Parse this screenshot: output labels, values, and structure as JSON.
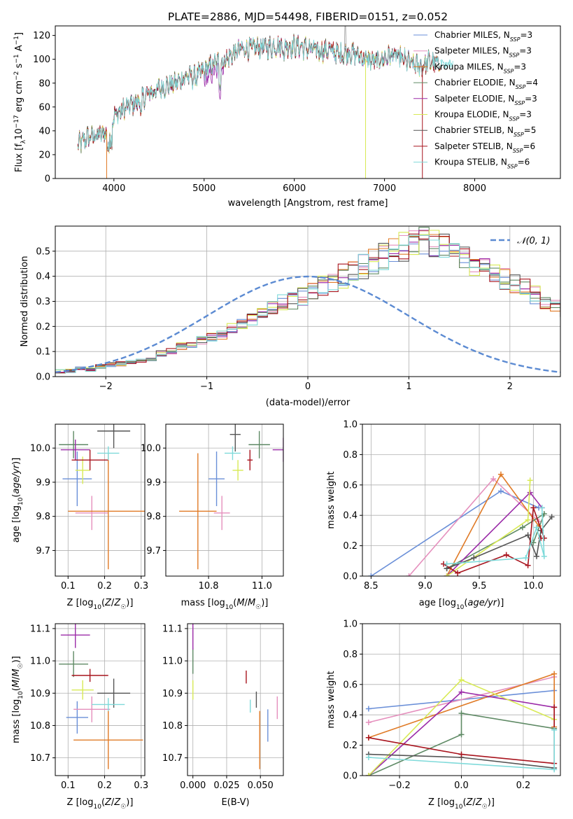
{
  "colors": {
    "Chabrier MILES": "#6a8fd8",
    "Salpeter MILES": "#e58fbd",
    "Kroupa MILES": "#e07b27",
    "Chabrier ELODIE": "#5f8a65",
    "Salpeter ELODIE": "#9b2ba8",
    "Kroupa ELODIE": "#d8ea55",
    "Chabrier STELIB": "#555555",
    "Salpeter STELIB": "#a8141e",
    "Kroupa STELIB": "#7fdada",
    "normal": "#5b8ad2"
  },
  "chart_data": [
    {
      "type": "line",
      "title": "PLATE=2886, MJD=54498, FIBERID=0151, z=0.052",
      "xlabel": "wavelength [Angstrom, rest frame]",
      "ylabel": "Flux [f_λ10^-17 erg cm^-2 s^-1 A^-1]",
      "xlim": [
        3350,
        8950
      ],
      "ylim": [
        0,
        128
      ],
      "xticks": [
        4000,
        5000,
        6000,
        7000,
        8000
      ],
      "yticks": [
        0,
        20,
        40,
        60,
        80,
        100,
        120
      ],
      "legend": "top-right",
      "legend_entries": [
        {
          "label": "Chabrier MILES, N",
          "sub": "SSP",
          "n": "=3"
        },
        {
          "label": "Salpeter MILES, N",
          "sub": "SSP",
          "n": "=3"
        },
        {
          "label": "Kroupa MILES, N",
          "sub": "SSP",
          "n": "=3"
        },
        {
          "label": "Chabrier ELODIE, N",
          "sub": "SSP",
          "n": "=4"
        },
        {
          "label": "Salpeter ELODIE, N",
          "sub": "SSP",
          "n": "=3"
        },
        {
          "label": "Kroupa ELODIE, N",
          "sub": "SSP",
          "n": "=3"
        },
        {
          "label": "Chabrier STELIB, N",
          "sub": "SSP",
          "n": "=5"
        },
        {
          "label": "Salpeter STELIB, N",
          "sub": "SSP",
          "n": "=6"
        },
        {
          "label": "Kroupa STELIB, N",
          "sub": "SSP",
          "n": "=6"
        }
      ],
      "series_names": [
        "Chabrier MILES",
        "Salpeter MILES",
        "Kroupa MILES",
        "Chabrier ELODIE",
        "Salpeter ELODIE",
        "Kroupa ELODIE",
        "Chabrier STELIB",
        "Salpeter STELIB",
        "Kroupa STELIB"
      ],
      "envelope": {
        "x": [
          3600,
          3700,
          3800,
          3900,
          4000,
          4100,
          4200,
          4300,
          4400,
          4500,
          4600,
          4700,
          4800,
          4900,
          5000,
          5100,
          5200,
          5300,
          5400,
          5500,
          5600,
          5700,
          5800,
          5900,
          6000,
          6100,
          6200,
          6300,
          6400,
          6500,
          6600,
          6700,
          6800,
          6900,
          7000,
          7100,
          7200,
          7300,
          7400,
          7500,
          7600
        ],
        "y": [
          28,
          34,
          36,
          38,
          52,
          58,
          62,
          66,
          72,
          75,
          78,
          80,
          86,
          85,
          90,
          96,
          98,
          103,
          108,
          109,
          110,
          110,
          111,
          112,
          111,
          110,
          108,
          107,
          108,
          104,
          106,
          104,
          100,
          98,
          101,
          104,
          100,
          96,
          94,
          98,
          96
        ]
      },
      "drops_to_zero_at": [
        3920,
        6790,
        7420
      ]
    },
    {
      "type": "bar",
      "xlabel": "(data-model)/error",
      "ylabel": "Normed distribution",
      "xlim": [
        -2.5,
        2.5
      ],
      "ylim": [
        0,
        0.6
      ],
      "xticks": [
        -2,
        -1,
        0,
        1,
        2
      ],
      "yticks": [
        0.0,
        0.1,
        0.2,
        0.3,
        0.4,
        0.5
      ],
      "legend": "top-right",
      "legend_label": "𝒩(0, 1)",
      "bin_width": 0.1,
      "bin_start": -2.5,
      "histogram_reference": [
        0.02,
        0.02,
        0.03,
        0.03,
        0.04,
        0.045,
        0.05,
        0.06,
        0.065,
        0.07,
        0.09,
        0.1,
        0.12,
        0.13,
        0.14,
        0.16,
        0.17,
        0.19,
        0.21,
        0.23,
        0.25,
        0.27,
        0.29,
        0.3,
        0.32,
        0.34,
        0.36,
        0.38,
        0.4,
        0.42,
        0.44,
        0.46,
        0.48,
        0.5,
        0.52,
        0.53,
        0.54,
        0.53,
        0.52,
        0.5,
        0.47,
        0.45,
        0.43,
        0.41,
        0.39,
        0.37,
        0.35,
        0.33,
        0.3,
        0.28,
        0.25,
        0.22,
        0.19,
        0.16,
        0.14,
        0.12,
        0.1,
        0.08,
        0.07,
        0.06,
        0.05,
        0.045,
        0.04,
        0.035,
        0.03,
        0.03,
        0.025,
        0.025,
        0.02,
        0.02
      ],
      "gaussian": {
        "mean": 0,
        "sigma": 1
      }
    },
    {
      "type": "scatter",
      "xlabel": "Z [log₁₀(Z/Z☉)]",
      "ylabel": "age  [log₁₀(age/yr)]",
      "xlim": [
        0.065,
        0.31
      ],
      "ylim": [
        9.625,
        10.07
      ],
      "xticks": [
        0.1,
        0.2,
        0.3
      ],
      "yticks": [
        9.7,
        9.8,
        9.9,
        10.0
      ],
      "points": [
        {
          "x": 0.125,
          "y": 9.91,
          "xerr": 0.04,
          "yerr": 0.08
        },
        {
          "x": 0.165,
          "y": 9.81,
          "xerr": 0.045,
          "yerr": 0.05
        },
        {
          "x": 0.21,
          "y": 9.815,
          "xerr": 0.11,
          "yerr": 0.17
        },
        {
          "x": 0.115,
          "y": 10.01,
          "xerr": 0.04,
          "yerr": 0.04
        },
        {
          "x": 0.12,
          "y": 9.995,
          "xerr": 0.04,
          "yerr": 0.03
        },
        {
          "x": 0.14,
          "y": 9.935,
          "xerr": 0.02,
          "yerr": 0.04
        },
        {
          "x": 0.225,
          "y": 10.05,
          "xerr": 0.045,
          "yerr": 0.05
        },
        {
          "x": 0.16,
          "y": 9.965,
          "xerr": 0.05,
          "yerr": 0.03
        },
        {
          "x": 0.21,
          "y": 9.985,
          "xerr": 0.03,
          "yerr": 0.02
        }
      ]
    },
    {
      "type": "scatter",
      "xlabel": "mass [log₁₀(M/M☉)]",
      "ylabel": "",
      "xlim": [
        10.64,
        11.08
      ],
      "ylim": [
        9.625,
        10.07
      ],
      "xticks": [
        10.8,
        11.0
      ],
      "yticks": [
        9.7,
        9.8,
        9.9,
        10.0
      ],
      "points": [
        {
          "x": 10.83,
          "y": 9.91,
          "xerr": 0.03,
          "yerr": 0.08
        },
        {
          "x": 10.85,
          "y": 9.81,
          "xerr": 0.03,
          "yerr": 0.05
        },
        {
          "x": 10.76,
          "y": 9.815,
          "xerr": 0.07,
          "yerr": 0.17
        },
        {
          "x": 10.99,
          "y": 10.01,
          "xerr": 0.04,
          "yerr": 0.04
        },
        {
          "x": 11.08,
          "y": 9.995,
          "xerr": 0.04,
          "yerr": 0.035
        },
        {
          "x": 10.91,
          "y": 9.935,
          "xerr": 0.02,
          "yerr": 0.03
        },
        {
          "x": 10.9,
          "y": 10.04,
          "xerr": 0.02,
          "yerr": 0.05
        },
        {
          "x": 10.955,
          "y": 9.965,
          "xerr": 0.01,
          "yerr": 0.03
        },
        {
          "x": 10.89,
          "y": 9.985,
          "xerr": 0.03,
          "yerr": 0.02
        }
      ]
    },
    {
      "type": "line",
      "xlabel": "age  [log₁₀(age/yr)]",
      "ylabel": "mass weight",
      "xlim": [
        8.42,
        10.25
      ],
      "ylim": [
        0,
        1.0
      ],
      "xticks": [
        8.5,
        9.0,
        9.5,
        10.0
      ],
      "yticks": [
        0.0,
        0.2,
        0.4,
        0.6,
        0.8,
        1.0
      ],
      "series": [
        {
          "x": [
            8.5,
            9.7,
            10.05
          ],
          "y": [
            0.0,
            0.56,
            0.45
          ]
        },
        {
          "x": [
            8.85,
            9.63,
            10.05
          ],
          "y": [
            0.0,
            0.64,
            0.36
          ]
        },
        {
          "x": [
            9.2,
            9.7,
            10.05
          ],
          "y": [
            0.0,
            0.67,
            0.33
          ]
        },
        {
          "x": [
            9.2,
            9.9,
            10.1,
            10.0
          ],
          "y": [
            0.05,
            0.32,
            0.41,
            0.22
          ]
        },
        {
          "x": [
            9.2,
            9.97,
            10.08
          ],
          "y": [
            0.0,
            0.55,
            0.45
          ]
        },
        {
          "x": [
            9.2,
            9.95,
            9.97
          ],
          "y": [
            0.0,
            0.37,
            0.63
          ]
        },
        {
          "x": [
            9.2,
            9.45,
            9.95,
            10.03,
            10.07,
            10.17
          ],
          "y": [
            0.05,
            0.12,
            0.27,
            0.13,
            0.3,
            0.39
          ]
        },
        {
          "x": [
            9.17,
            9.3,
            9.75,
            9.95,
            10.0,
            10.1,
            10.07
          ],
          "y": [
            0.08,
            0.02,
            0.14,
            0.07,
            0.45,
            0.25,
            0.25
          ]
        },
        {
          "x": [
            9.2,
            9.93,
            10.03,
            10.1,
            10.08
          ],
          "y": [
            0.08,
            0.12,
            0.32,
            0.13,
            0.45
          ]
        }
      ]
    },
    {
      "type": "scatter",
      "xlabel": "Z [log₁₀(Z/Z☉)]",
      "ylabel": "mass [log₁₀(M/M☉)]",
      "xlim": [
        0.065,
        0.31
      ],
      "ylim": [
        10.645,
        11.115
      ],
      "xticks": [
        0.1,
        0.2,
        0.3
      ],
      "yticks": [
        10.7,
        10.8,
        10.9,
        11.0,
        11.1
      ],
      "points": [
        {
          "x": 0.125,
          "y": 10.825,
          "xerr": 0.03,
          "yerr": 0.05
        },
        {
          "x": 0.165,
          "y": 10.85,
          "xerr": 0.05,
          "yerr": 0.04
        },
        {
          "x": 0.21,
          "y": 10.755,
          "xerr": 0.095,
          "yerr": 0.09
        },
        {
          "x": 0.115,
          "y": 10.99,
          "xerr": 0.04,
          "yerr": 0.04
        },
        {
          "x": 0.12,
          "y": 11.08,
          "xerr": 0.04,
          "yerr": 0.04
        },
        {
          "x": 0.14,
          "y": 10.91,
          "xerr": 0.03,
          "yerr": 0.03
        },
        {
          "x": 0.225,
          "y": 10.9,
          "xerr": 0.045,
          "yerr": 0.045
        },
        {
          "x": 0.16,
          "y": 10.955,
          "xerr": 0.05,
          "yerr": 0.02
        },
        {
          "x": 0.21,
          "y": 10.865,
          "xerr": 0.045,
          "yerr": 0.02
        }
      ]
    },
    {
      "type": "scatter",
      "xlabel": "E(B-V)",
      "ylabel": "",
      "xlim": [
        -0.004,
        0.067
      ],
      "ylim": [
        10.645,
        11.115
      ],
      "xticks": [
        0.0,
        0.025,
        0.05
      ],
      "xtick_labels": [
        "0.000",
        "0.025",
        "0.050"
      ],
      "yticks": [
        10.7,
        10.8,
        10.9,
        11.0,
        11.1
      ],
      "points": [
        {
          "x": 0.0555,
          "y": 10.8,
          "yerr": 0.05
        },
        {
          "x": 0.0625,
          "y": 10.855,
          "yerr": 0.035
        },
        {
          "x": 0.0495,
          "y": 10.755,
          "yerr": 0.09
        },
        {
          "x": 0.0,
          "y": 11.0,
          "yerr": 0.04
        },
        {
          "x": 0.0,
          "y": 11.075,
          "yerr": 0.04
        },
        {
          "x": 0.0,
          "y": 10.91,
          "yerr": 0.03
        },
        {
          "x": 0.047,
          "y": 10.88,
          "yerr": 0.025
        },
        {
          "x": 0.0395,
          "y": 10.95,
          "yerr": 0.02
        },
        {
          "x": 0.0425,
          "y": 10.86,
          "yerr": 0.02
        }
      ]
    },
    {
      "type": "line",
      "xlabel": "Z [log₁₀(Z/Z☉)]",
      "ylabel": "mass weight",
      "xlim": [
        -0.32,
        0.32
      ],
      "ylim": [
        0,
        1.0
      ],
      "xticks": [
        -0.2,
        0.0,
        0.2
      ],
      "yticks": [
        0.0,
        0.2,
        0.4,
        0.6,
        0.8,
        1.0
      ],
      "series": [
        {
          "x": [
            -0.3,
            0.3
          ],
          "y": [
            0.44,
            0.56
          ]
        },
        {
          "x": [
            -0.3,
            0.3
          ],
          "y": [
            0.35,
            0.65
          ]
        },
        {
          "x": [
            -0.3,
            0.3,
            0.3
          ],
          "y": [
            0.25,
            0.67,
            0.32
          ]
        },
        {
          "x": [
            -0.3,
            0.0,
            0.0,
            0.3
          ],
          "y": [
            0.0,
            0.27,
            0.41,
            0.31
          ]
        },
        {
          "x": [
            -0.3,
            0.0,
            0.3
          ],
          "y": [
            0.0,
            0.55,
            0.45
          ]
        },
        {
          "x": [
            -0.3,
            0.0,
            0.3
          ],
          "y": [
            0.0,
            0.63,
            0.37
          ]
        },
        {
          "x": [
            -0.3,
            0.0,
            0.3
          ],
          "y": [
            0.14,
            0.12,
            0.05
          ]
        },
        {
          "x": [
            -0.3,
            0.0,
            0.3,
            0.3
          ],
          "y": [
            0.25,
            0.14,
            0.08,
            0.45
          ]
        },
        {
          "x": [
            -0.3,
            0.3,
            0.3
          ],
          "y": [
            0.12,
            0.04,
            0.3
          ]
        }
      ]
    }
  ]
}
